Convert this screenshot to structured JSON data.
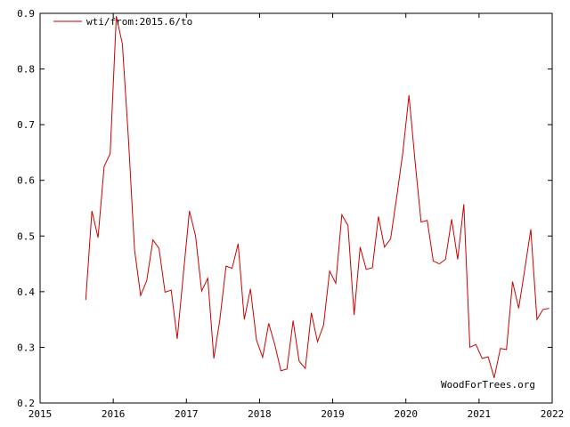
{
  "chart_data": {
    "type": "line",
    "title": "",
    "xlabel": "",
    "ylabel": "",
    "xlim": [
      2015,
      2022
    ],
    "ylim": [
      0.2,
      0.9
    ],
    "x_ticks": [
      2015,
      2016,
      2017,
      2018,
      2019,
      2020,
      2021,
      2022
    ],
    "x_tick_labels": [
      "2015",
      "2016",
      "2017",
      "2018",
      "2019",
      "2020",
      "2021",
      "2022"
    ],
    "y_ticks": [
      0.2,
      0.3,
      0.4,
      0.5,
      0.6,
      0.7,
      0.8,
      0.9
    ],
    "y_tick_labels": [
      "0.2",
      "0.3",
      "0.4",
      "0.5",
      "0.6",
      "0.7",
      "0.8",
      "0.9"
    ],
    "grid": false,
    "legend_position": "top-left",
    "watermark": "WoodForTrees.org",
    "series": [
      {
        "name": "wti/from:2015.6/to",
        "color": "#cc0000",
        "x": [
          2015.625,
          2015.708,
          2015.792,
          2015.875,
          2015.958,
          2016.042,
          2016.125,
          2016.208,
          2016.292,
          2016.375,
          2016.458,
          2016.542,
          2016.625,
          2016.708,
          2016.792,
          2016.875,
          2016.958,
          2017.042,
          2017.125,
          2017.208,
          2017.292,
          2017.375,
          2017.458,
          2017.542,
          2017.625,
          2017.708,
          2017.792,
          2017.875,
          2017.958,
          2018.042,
          2018.125,
          2018.208,
          2018.292,
          2018.375,
          2018.458,
          2018.542,
          2018.625,
          2018.708,
          2018.792,
          2018.875,
          2018.958,
          2019.042,
          2019.125,
          2019.208,
          2019.292,
          2019.375,
          2019.458,
          2019.542,
          2019.625,
          2019.708,
          2019.792,
          2019.875,
          2019.958,
          2020.042,
          2020.125,
          2020.208,
          2020.292,
          2020.375,
          2020.458,
          2020.542,
          2020.625,
          2020.708,
          2020.792,
          2020.875,
          2020.958,
          2021.042,
          2021.125,
          2021.208,
          2021.292,
          2021.375,
          2021.458,
          2021.542,
          2021.625,
          2021.708,
          2021.792,
          2021.875,
          2021.958
        ],
        "values": [
          0.385,
          0.545,
          0.497,
          0.625,
          0.648,
          0.895,
          0.845,
          0.675,
          0.475,
          0.393,
          0.42,
          0.493,
          0.478,
          0.399,
          0.403,
          0.315,
          0.43,
          0.545,
          0.5,
          0.401,
          0.424,
          0.28,
          0.35,
          0.446,
          0.442,
          0.486,
          0.35,
          0.405,
          0.313,
          0.282,
          0.343,
          0.305,
          0.258,
          0.261,
          0.348,
          0.275,
          0.262,
          0.362,
          0.31,
          0.34,
          0.437,
          0.415,
          0.538,
          0.519,
          0.358,
          0.48,
          0.44,
          0.443,
          0.535,
          0.48,
          0.495,
          0.57,
          0.65,
          0.753,
          0.635,
          0.525,
          0.528,
          0.455,
          0.45,
          0.458,
          0.53,
          0.458,
          0.557,
          0.3,
          0.305,
          0.28,
          0.283,
          0.245,
          0.298,
          0.296,
          0.418,
          0.37,
          0.44,
          0.512,
          0.35,
          0.368,
          0.37
        ]
      }
    ]
  }
}
